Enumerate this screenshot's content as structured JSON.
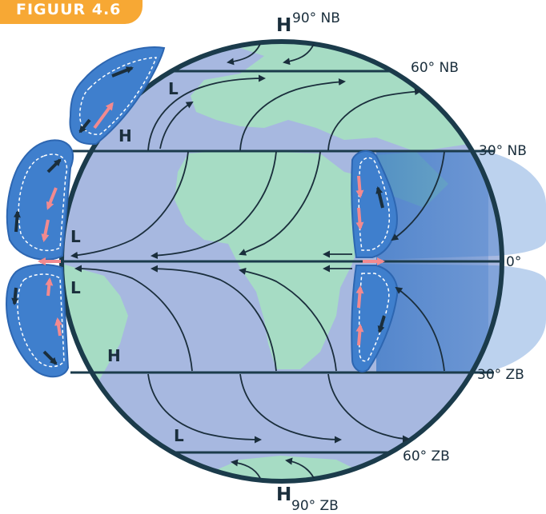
{
  "figure_tag": "FIGUUR 4.6",
  "top_pole": {
    "marker": "H",
    "latitude": "90° NB"
  },
  "bottom_pole": {
    "marker": "H",
    "latitude": "90° ZB"
  },
  "latitudes": {
    "n60": "60° NB",
    "n30": "30° NB",
    "eq": "0°",
    "s30": "30° ZB",
    "s60": "60° ZB"
  },
  "pressure_labels": {
    "l_north60": "L",
    "h_north30": "H",
    "l_eq_north": "L",
    "l_eq_south": "L",
    "h_south30": "H",
    "l_south60": "L"
  },
  "colors": {
    "ocean": "#a7b8e0",
    "land": "#a6dcc4",
    "cell_blue": "#3f7fcd",
    "globe_outline": "#1b3b4b",
    "arrow_dark": "#1a2e3c",
    "arrow_pink": "#f28a8f",
    "tag_orange": "#f7a834"
  }
}
